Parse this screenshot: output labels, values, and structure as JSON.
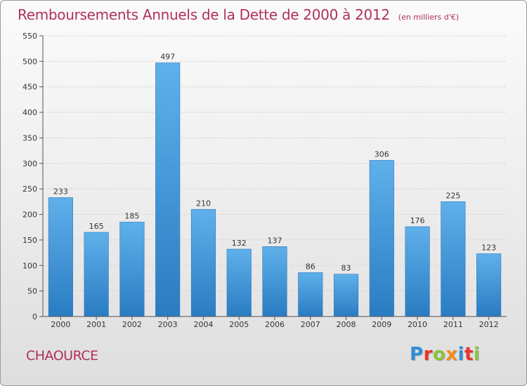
{
  "header": {
    "title": "Remboursements Annuels de la Dette de 2000 à 2012",
    "subtitle": "(en milliers d'€)"
  },
  "footer": {
    "commune": "CHAOURCE",
    "logo_letters": [
      "P",
      "r",
      "o",
      "x",
      "i",
      "t",
      "i"
    ],
    "logo_colors": [
      "#2f8fd8",
      "#e8342c",
      "#8bc43f",
      "#f28c1d",
      "#2f8fd8",
      "#e8342c",
      "#8bc43f"
    ]
  },
  "colors": {
    "bar_top": "#5fb0ea",
    "bar_bottom": "#2a7cc2",
    "grid": "#cfcfcf",
    "axis": "#555555"
  },
  "chart_data": {
    "type": "bar",
    "title": "Remboursements Annuels de la Dette de 2000 à 2012",
    "subtitle": "(en milliers d'€)",
    "categories": [
      "2000",
      "2001",
      "2002",
      "2003",
      "2004",
      "2005",
      "2006",
      "2007",
      "2008",
      "2009",
      "2010",
      "2011",
      "2012"
    ],
    "values": [
      233,
      165,
      185,
      497,
      210,
      132,
      137,
      86,
      83,
      306,
      176,
      225,
      123
    ],
    "ylim": [
      0,
      550
    ],
    "yticks": [
      0,
      50,
      100,
      150,
      200,
      250,
      300,
      350,
      400,
      450,
      500,
      550
    ],
    "grid": true,
    "xlabel": "",
    "ylabel": ""
  }
}
